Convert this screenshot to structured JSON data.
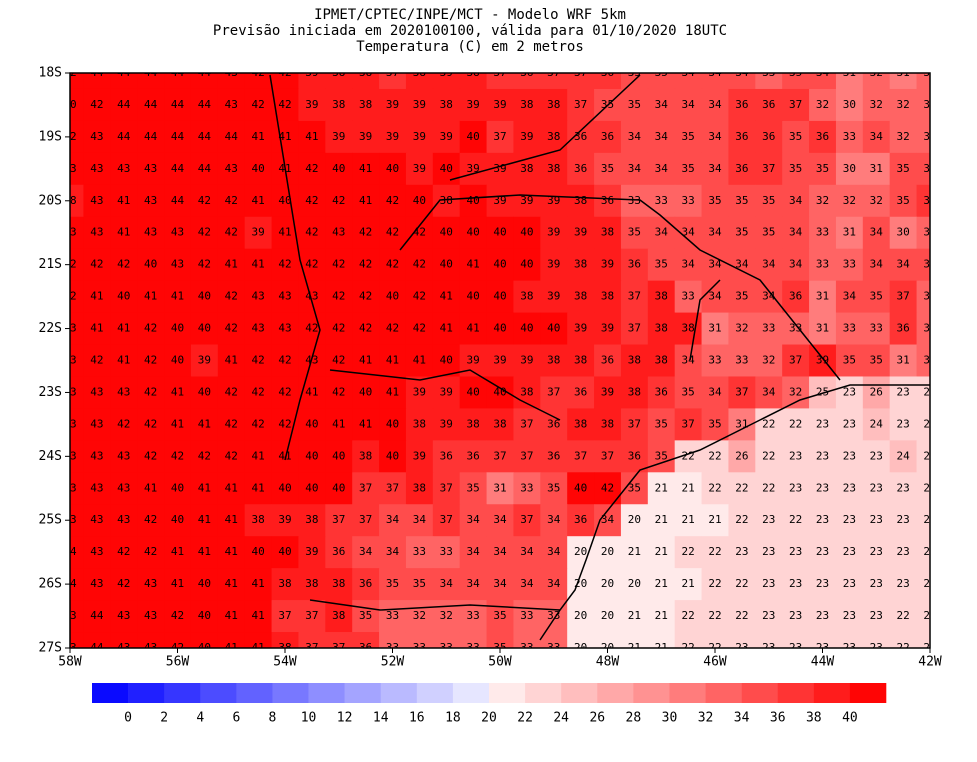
{
  "map": {
    "title_lines": [
      "IPMET/CPTEC/INPE/MCT - Modelo WRF 5km",
      "Previsão iniciada em 2020100100, válida para 01/10/2020 18UTC",
      "Temperatura (C) em 2 metros"
    ],
    "xlim": [
      -58,
      -42
    ],
    "ylim": [
      -27,
      -18
    ],
    "xticks": [
      {
        "value": -58,
        "label": "58W"
      },
      {
        "value": -56,
        "label": "56W"
      },
      {
        "value": -54,
        "label": "54W"
      },
      {
        "value": -52,
        "label": "52W"
      },
      {
        "value": -50,
        "label": "50W"
      },
      {
        "value": -48,
        "label": "48W"
      },
      {
        "value": -46,
        "label": "46W"
      },
      {
        "value": -44,
        "label": "44W"
      },
      {
        "value": -42,
        "label": "42W"
      }
    ],
    "yticks": [
      {
        "value": -18,
        "label": "18S"
      },
      {
        "value": -19,
        "label": "19S"
      },
      {
        "value": -20,
        "label": "20S"
      },
      {
        "value": -21,
        "label": "21S"
      },
      {
        "value": -22,
        "label": "22S"
      },
      {
        "value": -23,
        "label": "23S"
      },
      {
        "value": -24,
        "label": "24S"
      },
      {
        "value": -25,
        "label": "25S"
      },
      {
        "value": -26,
        "label": "26S"
      },
      {
        "value": -27,
        "label": "27S"
      }
    ],
    "grid_values": [
      [
        42,
        44,
        44,
        44,
        44,
        44,
        43,
        42,
        42,
        39,
        38,
        38,
        37,
        38,
        39,
        38,
        37,
        36,
        37,
        37,
        36,
        35,
        35,
        34,
        34,
        34,
        33,
        35,
        34,
        31,
        32,
        31,
        33
      ],
      [
        40,
        42,
        44,
        44,
        44,
        44,
        43,
        42,
        42,
        39,
        38,
        38,
        39,
        39,
        38,
        39,
        39,
        38,
        38,
        37,
        35,
        35,
        34,
        34,
        34,
        36,
        36,
        37,
        32,
        30,
        32,
        32,
        32
      ],
      [
        42,
        43,
        44,
        44,
        44,
        44,
        44,
        41,
        41,
        41,
        39,
        39,
        39,
        39,
        39,
        40,
        37,
        39,
        38,
        36,
        36,
        34,
        34,
        35,
        34,
        36,
        36,
        35,
        36,
        33,
        34,
        32,
        32
      ],
      [
        43,
        43,
        43,
        43,
        44,
        44,
        43,
        40,
        41,
        42,
        40,
        41,
        40,
        39,
        40,
        39,
        39,
        38,
        38,
        36,
        35,
        34,
        34,
        35,
        34,
        36,
        37,
        35,
        35,
        30,
        31,
        35,
        35
      ],
      [
        38,
        43,
        41,
        43,
        44,
        42,
        42,
        41,
        40,
        42,
        42,
        41,
        42,
        40,
        38,
        40,
        39,
        39,
        39,
        38,
        36,
        33,
        33,
        33,
        35,
        35,
        35,
        34,
        32,
        32,
        32,
        35,
        36
      ],
      [
        43,
        43,
        41,
        43,
        43,
        42,
        42,
        39,
        41,
        42,
        43,
        42,
        42,
        42,
        40,
        40,
        40,
        40,
        39,
        39,
        38,
        35,
        34,
        34,
        34,
        35,
        35,
        34,
        33,
        31,
        34,
        30,
        33
      ],
      [
        42,
        42,
        42,
        40,
        43,
        42,
        41,
        41,
        42,
        42,
        42,
        42,
        42,
        42,
        40,
        41,
        40,
        40,
        39,
        38,
        39,
        36,
        35,
        34,
        34,
        34,
        34,
        34,
        33,
        33,
        34,
        34,
        34
      ],
      [
        42,
        41,
        40,
        41,
        41,
        40,
        42,
        43,
        43,
        43,
        42,
        42,
        40,
        42,
        41,
        40,
        40,
        38,
        39,
        38,
        38,
        37,
        38,
        33,
        34,
        35,
        34,
        36,
        31,
        34,
        35,
        37,
        33
      ],
      [
        43,
        41,
        41,
        42,
        40,
        40,
        42,
        43,
        43,
        42,
        42,
        42,
        42,
        42,
        41,
        41,
        40,
        40,
        40,
        39,
        39,
        37,
        38,
        38,
        31,
        32,
        33,
        33,
        31,
        33,
        33,
        36,
        33
      ],
      [
        43,
        42,
        41,
        42,
        40,
        39,
        41,
        42,
        42,
        43,
        42,
        41,
        41,
        41,
        40,
        39,
        39,
        39,
        38,
        38,
        36,
        38,
        38,
        34,
        33,
        33,
        32,
        37,
        39,
        35,
        35,
        31,
        32
      ],
      [
        43,
        43,
        43,
        42,
        41,
        40,
        42,
        42,
        42,
        41,
        42,
        40,
        41,
        39,
        39,
        40,
        40,
        38,
        37,
        36,
        39,
        38,
        36,
        35,
        34,
        37,
        34,
        32,
        25,
        23,
        26,
        23,
        23
      ],
      [
        43,
        43,
        42,
        42,
        41,
        41,
        42,
        42,
        42,
        40,
        41,
        41,
        40,
        38,
        39,
        38,
        38,
        37,
        36,
        38,
        38,
        37,
        35,
        37,
        35,
        31,
        22,
        22,
        23,
        23,
        24,
        23,
        23
      ],
      [
        43,
        43,
        43,
        42,
        42,
        42,
        42,
        41,
        41,
        40,
        40,
        38,
        40,
        39,
        36,
        36,
        37,
        37,
        36,
        37,
        37,
        36,
        35,
        22,
        22,
        26,
        22,
        23,
        23,
        23,
        23,
        24,
        23
      ],
      [
        43,
        43,
        43,
        41,
        40,
        41,
        41,
        41,
        40,
        40,
        40,
        37,
        37,
        38,
        37,
        35,
        31,
        33,
        35,
        40,
        42,
        35,
        21,
        21,
        22,
        22,
        22,
        23,
        23,
        23,
        23,
        23,
        23
      ],
      [
        43,
        43,
        43,
        42,
        40,
        41,
        41,
        38,
        39,
        38,
        37,
        37,
        34,
        34,
        37,
        34,
        34,
        37,
        34,
        36,
        34,
        20,
        21,
        21,
        21,
        22,
        23,
        22,
        23,
        23,
        23,
        23,
        23
      ],
      [
        44,
        43,
        42,
        42,
        41,
        41,
        41,
        40,
        40,
        39,
        36,
        34,
        34,
        33,
        33,
        34,
        34,
        34,
        34,
        20,
        20,
        21,
        21,
        22,
        22,
        23,
        23,
        23,
        23,
        23,
        23,
        23,
        23
      ],
      [
        44,
        43,
        42,
        43,
        41,
        40,
        41,
        41,
        38,
        38,
        38,
        36,
        35,
        35,
        34,
        34,
        34,
        34,
        34,
        20,
        20,
        20,
        21,
        21,
        22,
        22,
        23,
        23,
        23,
        23,
        23,
        23,
        23
      ],
      [
        43,
        44,
        43,
        43,
        42,
        40,
        41,
        41,
        37,
        37,
        38,
        35,
        33,
        32,
        32,
        33,
        35,
        33,
        33,
        20,
        20,
        21,
        21,
        22,
        22,
        22,
        23,
        23,
        23,
        23,
        23,
        22,
        22
      ],
      [
        43,
        44,
        43,
        43,
        42,
        40,
        41,
        41,
        38,
        37,
        37,
        36,
        33,
        33,
        33,
        33,
        35,
        33,
        33,
        20,
        20,
        21,
        21,
        22,
        22,
        23,
        23,
        23,
        23,
        23,
        23,
        22,
        22
      ]
    ],
    "colorbar": {
      "levels": [
        0,
        2,
        4,
        6,
        8,
        10,
        12,
        14,
        16,
        18,
        20,
        22,
        24,
        26,
        28,
        30,
        32,
        34,
        36,
        38,
        40
      ],
      "colors": [
        "#0a0aff",
        "#2020ff",
        "#3636ff",
        "#4c4cff",
        "#6262ff",
        "#7878ff",
        "#8e8eff",
        "#a4a4ff",
        "#babaff",
        "#d0d0ff",
        "#e6e6ff",
        "#ffeaea",
        "#ffd4d4",
        "#ffbebe",
        "#ffa8a8",
        "#ff9292",
        "#ff7c7c",
        "#ff6464",
        "#ff4c4c",
        "#ff3434",
        "#ff1c1c",
        "#ff0505"
      ]
    }
  }
}
